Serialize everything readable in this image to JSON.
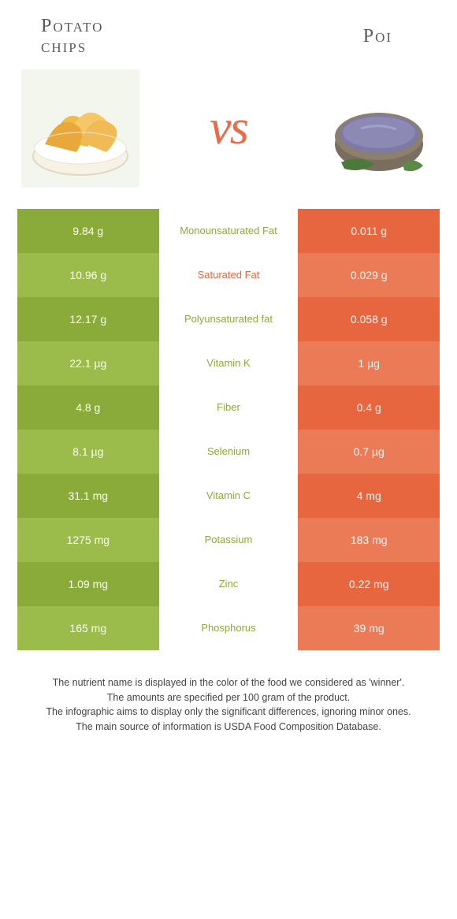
{
  "leftFood": {
    "title": "Potato\nchips"
  },
  "rightFood": {
    "title": "Poi"
  },
  "vs": "vs",
  "colors": {
    "leftDark": "#8aab3a",
    "leftLight": "#9bbb4b",
    "rightDark": "#e8663f",
    "rightLight": "#ea7b56",
    "midWinnerLeft": "#8aab3a",
    "midWinnerRight": "#e8663f"
  },
  "rows": [
    {
      "left": "9.84 g",
      "label": "Monounsaturated Fat",
      "right": "0.011 g",
      "winner": "left"
    },
    {
      "left": "10.96 g",
      "label": "Saturated Fat",
      "right": "0.029 g",
      "winner": "right"
    },
    {
      "left": "12.17 g",
      "label": "Polyunsaturated fat",
      "right": "0.058 g",
      "winner": "left"
    },
    {
      "left": "22.1 µg",
      "label": "Vitamin K",
      "right": "1 µg",
      "winner": "left"
    },
    {
      "left": "4.8 g",
      "label": "Fiber",
      "right": "0.4 g",
      "winner": "left"
    },
    {
      "left": "8.1 µg",
      "label": "Selenium",
      "right": "0.7 µg",
      "winner": "left"
    },
    {
      "left": "31.1 mg",
      "label": "Vitamin C",
      "right": "4 mg",
      "winner": "left"
    },
    {
      "left": "1275 mg",
      "label": "Potassium",
      "right": "183 mg",
      "winner": "left"
    },
    {
      "left": "1.09 mg",
      "label": "Zinc",
      "right": "0.22 mg",
      "winner": "left"
    },
    {
      "left": "165 mg",
      "label": "Phosphorus",
      "right": "39 mg",
      "winner": "left"
    }
  ],
  "footnote": [
    "The nutrient name is displayed in the color of the food we considered as 'winner'.",
    "The amounts are specified per 100 gram of the product.",
    "The infographic aims to display only the significant differences, ignoring minor ones.",
    "The main source of information is USDA Food Composition Database."
  ]
}
